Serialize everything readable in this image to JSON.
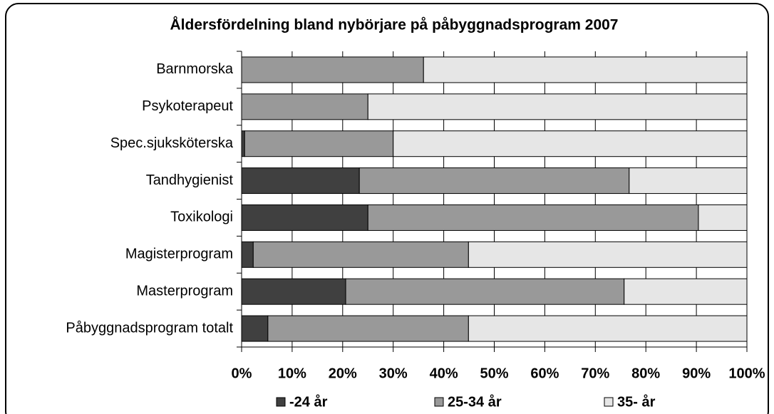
{
  "chart_data": {
    "type": "stacked-bar-horizontal",
    "title": "Åldersfördelning bland nybörjare på påbyggnadsprogram 2007",
    "categories": [
      "Barnmorska",
      "Psykoterapeut",
      "Spec.sjuksköterska",
      "Tandhygienist",
      "Toxikologi",
      "Magisterprogram",
      "Masterprogram",
      "Påbyggnadsprogram totalt"
    ],
    "series": [
      {
        "name": "-24 år",
        "color": "#404040",
        "values": [
          0,
          0,
          0.6,
          23.3,
          25,
          2.3,
          20.6,
          5.2
        ]
      },
      {
        "name": "25-34 år",
        "color": "#999999",
        "values": [
          36,
          25,
          29.4,
          53.4,
          65.4,
          42.6,
          55.1,
          39.7
        ]
      },
      {
        "name": "35- år",
        "color": "#e6e6e6",
        "values": [
          64,
          75,
          70,
          23.3,
          9.6,
          55.1,
          24.3,
          55.1
        ]
      }
    ],
    "xlim": [
      0,
      100
    ],
    "xticks": [
      {
        "value": 0,
        "label": "0%"
      },
      {
        "value": 10,
        "label": "10%"
      },
      {
        "value": 20,
        "label": "20%"
      },
      {
        "value": 30,
        "label": "30%"
      },
      {
        "value": 40,
        "label": "40%"
      },
      {
        "value": 50,
        "label": "50%"
      },
      {
        "value": 60,
        "label": "60%"
      },
      {
        "value": 70,
        "label": "70%"
      },
      {
        "value": 80,
        "label": "80%"
      },
      {
        "value": 90,
        "label": "90%"
      },
      {
        "value": 100,
        "label": "100%"
      }
    ],
    "grid": true,
    "legend": "bottom"
  }
}
